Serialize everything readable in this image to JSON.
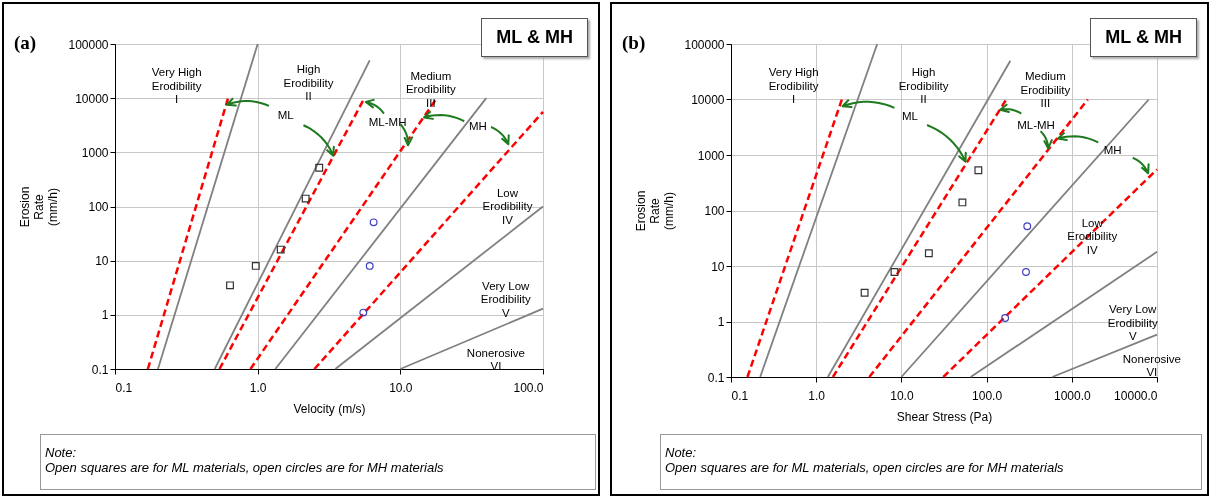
{
  "chart_data": [
    {
      "type": "line",
      "title": "ML & MH",
      "xlabel": "Velocity (m/s)",
      "ylabel": "Erosion\nRate\n(mm/h)",
      "log": "xy",
      "grid": true,
      "xlim": [
        0.1,
        100
      ],
      "xticks": [
        0.1,
        {
          "value": 1,
          "label": "1.0"
        },
        {
          "value": 10,
          "label": "10.0"
        },
        {
          "value": 100,
          "label": "100.0"
        }
      ],
      "ylim": [
        0.1,
        100000
      ],
      "yticks": [
        0.1,
        1,
        10,
        100,
        1000,
        10000,
        100000
      ],
      "series": [
        {
          "color": "#808080",
          "x": [
            0.2,
            1.0
          ],
          "values": [
            0.1,
            100000
          ]
        },
        {
          "color": "#808080",
          "x": [
            0.5,
            6.1
          ],
          "values": [
            0.1,
            50000
          ]
        },
        {
          "color": "#808080",
          "x": [
            1.33,
            40
          ],
          "values": [
            0.1,
            10000
          ]
        },
        {
          "color": "#808080",
          "x": [
            3.5,
            100
          ],
          "values": [
            0.1,
            100
          ]
        },
        {
          "color": "#808080",
          "x": [
            10,
            100
          ],
          "values": [
            0.1,
            1.3
          ]
        },
        {
          "color": "#ff0000",
          "line_style": "dashed",
          "x": [
            0.17,
            0.62
          ],
          "values": [
            0.1,
            10000
          ]
        },
        {
          "color": "#ff0000",
          "line_style": "dashed",
          "x": [
            0.54,
            5.6
          ],
          "values": [
            0.1,
            10000
          ]
        },
        {
          "color": "#ff0000",
          "line_style": "dashed",
          "x": [
            0.89,
            18
          ],
          "values": [
            0.1,
            10000
          ]
        },
        {
          "color": "#ff0000",
          "line_style": "dashed",
          "x": [
            2.5,
            100
          ],
          "values": [
            0.1,
            5600
          ]
        },
        {
          "type": "scatter",
          "marker": "square",
          "color": "#333333",
          "x": [
            0.64,
            0.97,
            1.45,
            2.17,
            2.7
          ],
          "values": [
            3.5,
            8,
            16,
            140,
            520
          ]
        },
        {
          "type": "scatter",
          "marker": "circle",
          "color": "#4040c0",
          "x": [
            6.5,
            6.1,
            5.5
          ],
          "values": [
            51,
            8,
            1.1
          ]
        }
      ],
      "annotations": [
        "(a)",
        "Note:",
        "Open squares are for ML materials, open circles are for MH materials",
        "Very High\nErodibility\nI",
        "High\nErodibility\nII",
        "Medium\nErodibility\nIII",
        "Low\nErodibility\nIV",
        "Very Low\nErodibility\nV",
        "Nonerosive\nVI",
        "ML",
        "ML-MH",
        "MH"
      ]
    },
    {
      "type": "line",
      "title": "ML & MH",
      "xlabel": "Shear Stress (Pa)",
      "ylabel": "Erosion\nRate\n(mm/h)",
      "log": "xy",
      "grid": true,
      "xlim": [
        0.1,
        10000
      ],
      "xticks": [
        0.1,
        {
          "value": 1,
          "label": "1.0"
        },
        {
          "value": 10,
          "label": "10.0"
        },
        {
          "value": 100,
          "label": "100.0"
        },
        {
          "value": 1000,
          "label": "1000.0"
        },
        {
          "value": 10000,
          "label": "10000.0"
        }
      ],
      "ylim": [
        0.1,
        100000
      ],
      "yticks": [
        0.1,
        1,
        10,
        100,
        1000,
        10000,
        100000
      ],
      "series": [
        {
          "color": "#808080",
          "x": [
            0.22,
            5.2
          ],
          "values": [
            0.1,
            100000
          ]
        },
        {
          "color": "#808080",
          "x": [
            1.37,
            190
          ],
          "values": [
            0.1,
            50000
          ]
        },
        {
          "color": "#808080",
          "x": [
            10,
            8000
          ],
          "values": [
            0.1,
            10000
          ]
        },
        {
          "color": "#808080",
          "x": [
            65,
            10000
          ],
          "values": [
            0.1,
            18
          ]
        },
        {
          "color": "#808080",
          "x": [
            590,
            10000
          ],
          "values": [
            0.1,
            0.58
          ]
        },
        {
          "color": "#ff0000",
          "line_style": "dashed",
          "x": [
            0.156,
            2.0
          ],
          "values": [
            0.1,
            10000
          ]
        },
        {
          "color": "#ff0000",
          "line_style": "dashed",
          "x": [
            1.57,
            170
          ],
          "values": [
            0.1,
            10000
          ]
        },
        {
          "color": "#ff0000",
          "line_style": "dashed",
          "x": [
            4.2,
            1540
          ],
          "values": [
            0.1,
            10000
          ]
        },
        {
          "color": "#ff0000",
          "line_style": "dashed",
          "x": [
            31,
            10000
          ],
          "values": [
            0.1,
            550
          ]
        },
        {
          "type": "scatter",
          "marker": "square",
          "color": "#333333",
          "x": [
            3.7,
            8.3,
            21,
            52,
            80
          ],
          "values": [
            3.3,
            7.8,
            17,
            140,
            530
          ]
        },
        {
          "type": "scatter",
          "marker": "circle",
          "color": "#4040c0",
          "x": [
            300,
            290,
            165
          ],
          "values": [
            52,
            7.8,
            1.16
          ]
        }
      ],
      "annotations": [
        "(b)",
        "Note:",
        "Open squares are for ML materials, open circles are for MH materials",
        "Very High\nErodibility\nI",
        "High\nErodibility\nII",
        "Medium\nErodibility\nIII",
        "Low\nErodibility\nIV",
        "Very Low\nErodibility\nV",
        "Nonerosive\nVI",
        "ML",
        "ML-MH",
        "MH"
      ]
    }
  ]
}
